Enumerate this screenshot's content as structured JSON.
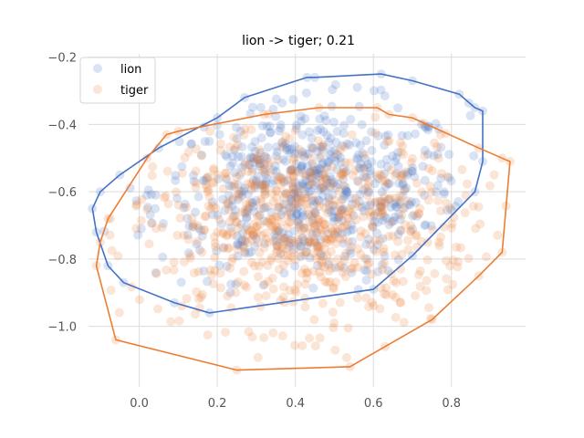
{
  "chart_data": {
    "type": "scatter",
    "title": "lion -> tiger; 0.21",
    "xlabel": "",
    "ylabel": "",
    "xlim": [
      -0.13,
      0.99
    ],
    "ylim": [
      -1.18,
      -0.19
    ],
    "x_ticks": [
      0.0,
      0.2,
      0.4,
      0.6,
      0.8
    ],
    "x_tick_labels": [
      "0.0",
      "0.2",
      "0.4",
      "0.6",
      "0.8"
    ],
    "y_ticks": [
      -1.0,
      -0.8,
      -0.6,
      -0.4,
      -0.2
    ],
    "y_tick_labels": [
      "−1.0",
      "−0.8",
      "−0.6",
      "−0.4",
      "−0.2"
    ],
    "grid": true,
    "legend_position": "top-left",
    "series": [
      {
        "name": "lion",
        "color": "#4472c4",
        "marker_alpha": 0.2,
        "count_estimate": 600,
        "cloud": {
          "cx": 0.44,
          "cy": -0.6,
          "sx": 0.2,
          "sy": 0.13
        },
        "hull": [
          [
            -0.12,
            -0.65
          ],
          [
            -0.11,
            -0.72
          ],
          [
            -0.08,
            -0.82
          ],
          [
            -0.04,
            -0.87
          ],
          [
            0.09,
            -0.93
          ],
          [
            0.18,
            -0.96
          ],
          [
            0.6,
            -0.89
          ],
          [
            0.7,
            -0.79
          ],
          [
            0.86,
            -0.6
          ],
          [
            0.88,
            -0.51
          ],
          [
            0.88,
            -0.36
          ],
          [
            0.86,
            -0.35
          ],
          [
            0.82,
            -0.31
          ],
          [
            0.7,
            -0.27
          ],
          [
            0.62,
            -0.25
          ],
          [
            0.45,
            -0.26
          ],
          [
            0.43,
            -0.26
          ],
          [
            0.27,
            -0.32
          ],
          [
            0.2,
            -0.38
          ],
          [
            0.05,
            -0.47
          ],
          [
            -0.05,
            -0.55
          ],
          [
            -0.1,
            -0.6
          ]
        ]
      },
      {
        "name": "tiger",
        "color": "#ed7d31",
        "marker_alpha": 0.2,
        "count_estimate": 700,
        "cloud": {
          "cx": 0.42,
          "cy": -0.7,
          "sx": 0.22,
          "sy": 0.15
        },
        "hull": [
          [
            -0.11,
            -0.82
          ],
          [
            -0.06,
            -1.04
          ],
          [
            0.25,
            -1.13
          ],
          [
            0.54,
            -1.12
          ],
          [
            0.63,
            -1.06
          ],
          [
            0.75,
            -0.98
          ],
          [
            0.87,
            -0.85
          ],
          [
            0.93,
            -0.78
          ],
          [
            0.95,
            -0.51
          ],
          [
            0.93,
            -0.5
          ],
          [
            0.87,
            -0.47
          ],
          [
            0.7,
            -0.38
          ],
          [
            0.64,
            -0.37
          ],
          [
            0.61,
            -0.35
          ],
          [
            0.46,
            -0.35
          ],
          [
            0.32,
            -0.37
          ],
          [
            0.1,
            -0.42
          ],
          [
            0.07,
            -0.43
          ],
          [
            0.02,
            -0.5
          ],
          [
            -0.08,
            -0.68
          ],
          [
            -0.1,
            -0.75
          ]
        ]
      }
    ]
  }
}
